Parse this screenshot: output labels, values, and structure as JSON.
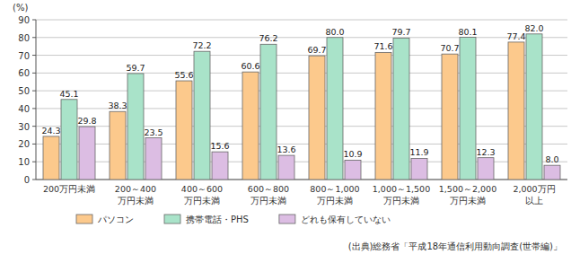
{
  "chart_data": {
    "type": "bar",
    "y_label": "(%)",
    "annotations": [
      "(出典)総務省「平成18年通信利用動向調査(世帯編)」"
    ],
    "categories": [
      "200万円未満",
      "200～400\n万円未満",
      "400～600\n万円未満",
      "600～800\n万円未満",
      "800～1,000\n万円未満",
      "1,000～1,500\n万円未満",
      "1,500～2,000\n万円未満",
      "2,000万円\n以上"
    ],
    "series": [
      {
        "name": "パソコン",
        "color": "#fcc98c",
        "values": [
          24.3,
          38.3,
          55.6,
          60.6,
          69.7,
          71.6,
          70.7,
          77.4
        ],
        "value_labels": [
          "24.3",
          "38.3",
          "55.6",
          "60.6",
          "69.7",
          "71.6",
          "70.7",
          "77.4"
        ]
      },
      {
        "name": "携帯電話・PHS",
        "color": "#a9e3c9",
        "values": [
          45.1,
          59.7,
          72.2,
          76.2,
          80.0,
          79.7,
          80.1,
          82.0
        ],
        "value_labels": [
          "45.1",
          "59.7",
          "72.2",
          "76.2",
          "80.0",
          "79.7",
          "80.1",
          "82.0"
        ]
      },
      {
        "name": "どれも保有していない",
        "color": "#dcbde3",
        "values": [
          29.8,
          23.5,
          15.6,
          13.6,
          10.9,
          11.9,
          12.3,
          8.0
        ],
        "value_labels": [
          "29.8",
          "23.5",
          "15.6",
          "13.6",
          "10.9",
          "11.9",
          "12.3",
          "8.0"
        ]
      }
    ],
    "ylim": [
      0,
      90
    ],
    "yticks": [
      0,
      10,
      20,
      30,
      40,
      50,
      60,
      70,
      80,
      90
    ],
    "grid": true,
    "legend": "bottom",
    "data_labels": true
  }
}
